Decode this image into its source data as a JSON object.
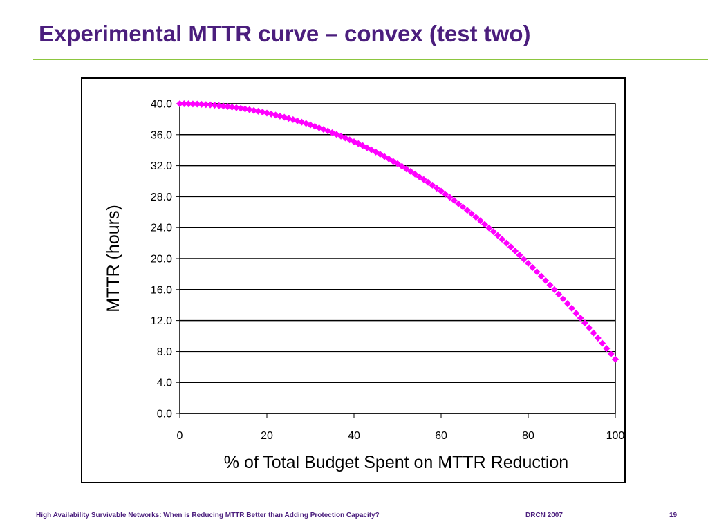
{
  "slide": {
    "title": "Experimental MTTR curve – convex (test two)",
    "footer_left": "High Availability Survivable Networks: When is Reducing MTTR Better than Adding Protection Capacity?",
    "footer_center": "DRCN 2007",
    "page_number": "19"
  },
  "colors": {
    "title": "#4B1E7D",
    "rule": "#8CC63F",
    "series": "#FF00FF",
    "gridline": "#000000"
  },
  "chart_data": {
    "type": "scatter",
    "title": "",
    "xlabel": "% of Total Budget Spent on MTTR Reduction",
    "ylabel": "MTTR (hours)",
    "xlim": [
      0,
      100
    ],
    "ylim": [
      0,
      40
    ],
    "x_ticks": [
      "0",
      "20",
      "40",
      "60",
      "80",
      "100"
    ],
    "y_ticks": [
      "0.0",
      "4.0",
      "8.0",
      "12.0",
      "16.0",
      "20.0",
      "24.0",
      "28.0",
      "32.0",
      "36.0",
      "40.0"
    ],
    "grid": "horizontal",
    "legend": "none",
    "series": [
      {
        "marker": "diamond",
        "x": [
          0,
          1,
          2,
          3,
          4,
          5,
          6,
          7,
          8,
          9,
          10,
          11,
          12,
          13,
          14,
          15,
          16,
          17,
          18,
          19,
          20,
          21,
          22,
          23,
          24,
          25,
          26,
          27,
          28,
          29,
          30,
          31,
          32,
          33,
          34,
          35,
          36,
          37,
          38,
          39,
          40,
          41,
          42,
          43,
          44,
          45,
          46,
          47,
          48,
          49,
          50,
          51,
          52,
          53,
          54,
          55,
          56,
          57,
          58,
          59,
          60,
          61,
          62,
          63,
          64,
          65,
          66,
          67,
          68,
          69,
          70,
          71,
          72,
          73,
          74,
          75,
          76,
          77,
          78,
          79,
          80,
          81,
          82,
          83,
          84,
          85,
          86,
          87,
          88,
          89,
          90,
          91,
          92,
          93,
          94,
          95,
          96,
          97,
          98,
          99,
          100
        ],
        "y": [
          40.0,
          40.0,
          39.99,
          39.97,
          39.95,
          39.92,
          39.89,
          39.85,
          39.81,
          39.76,
          39.7,
          39.64,
          39.57,
          39.49,
          39.41,
          39.33,
          39.23,
          39.13,
          39.03,
          38.92,
          38.8,
          38.67,
          38.54,
          38.4,
          38.26,
          38.11,
          37.96,
          37.79,
          37.62,
          37.45,
          37.27,
          37.08,
          36.89,
          36.68,
          36.48,
          36.26,
          36.04,
          35.81,
          35.58,
          35.34,
          35.09,
          34.84,
          34.58,
          34.31,
          34.04,
          33.76,
          33.47,
          33.17,
          32.87,
          32.56,
          32.25,
          31.92,
          31.59,
          31.26,
          30.91,
          30.56,
          30.21,
          29.84,
          29.47,
          29.09,
          28.7,
          28.31,
          27.91,
          27.5,
          27.08,
          26.66,
          26.23,
          25.79,
          25.34,
          24.89,
          24.42,
          23.95,
          23.48,
          22.99,
          22.5,
          22.0,
          21.49,
          20.98,
          20.46,
          19.92,
          19.39,
          18.84,
          18.28,
          17.72,
          17.15,
          16.58,
          15.99,
          15.4,
          14.8,
          14.19,
          13.58,
          12.95,
          12.32,
          11.69,
          11.04,
          10.39,
          9.73,
          9.06,
          8.38,
          7.69,
          7.0
        ]
      }
    ]
  }
}
